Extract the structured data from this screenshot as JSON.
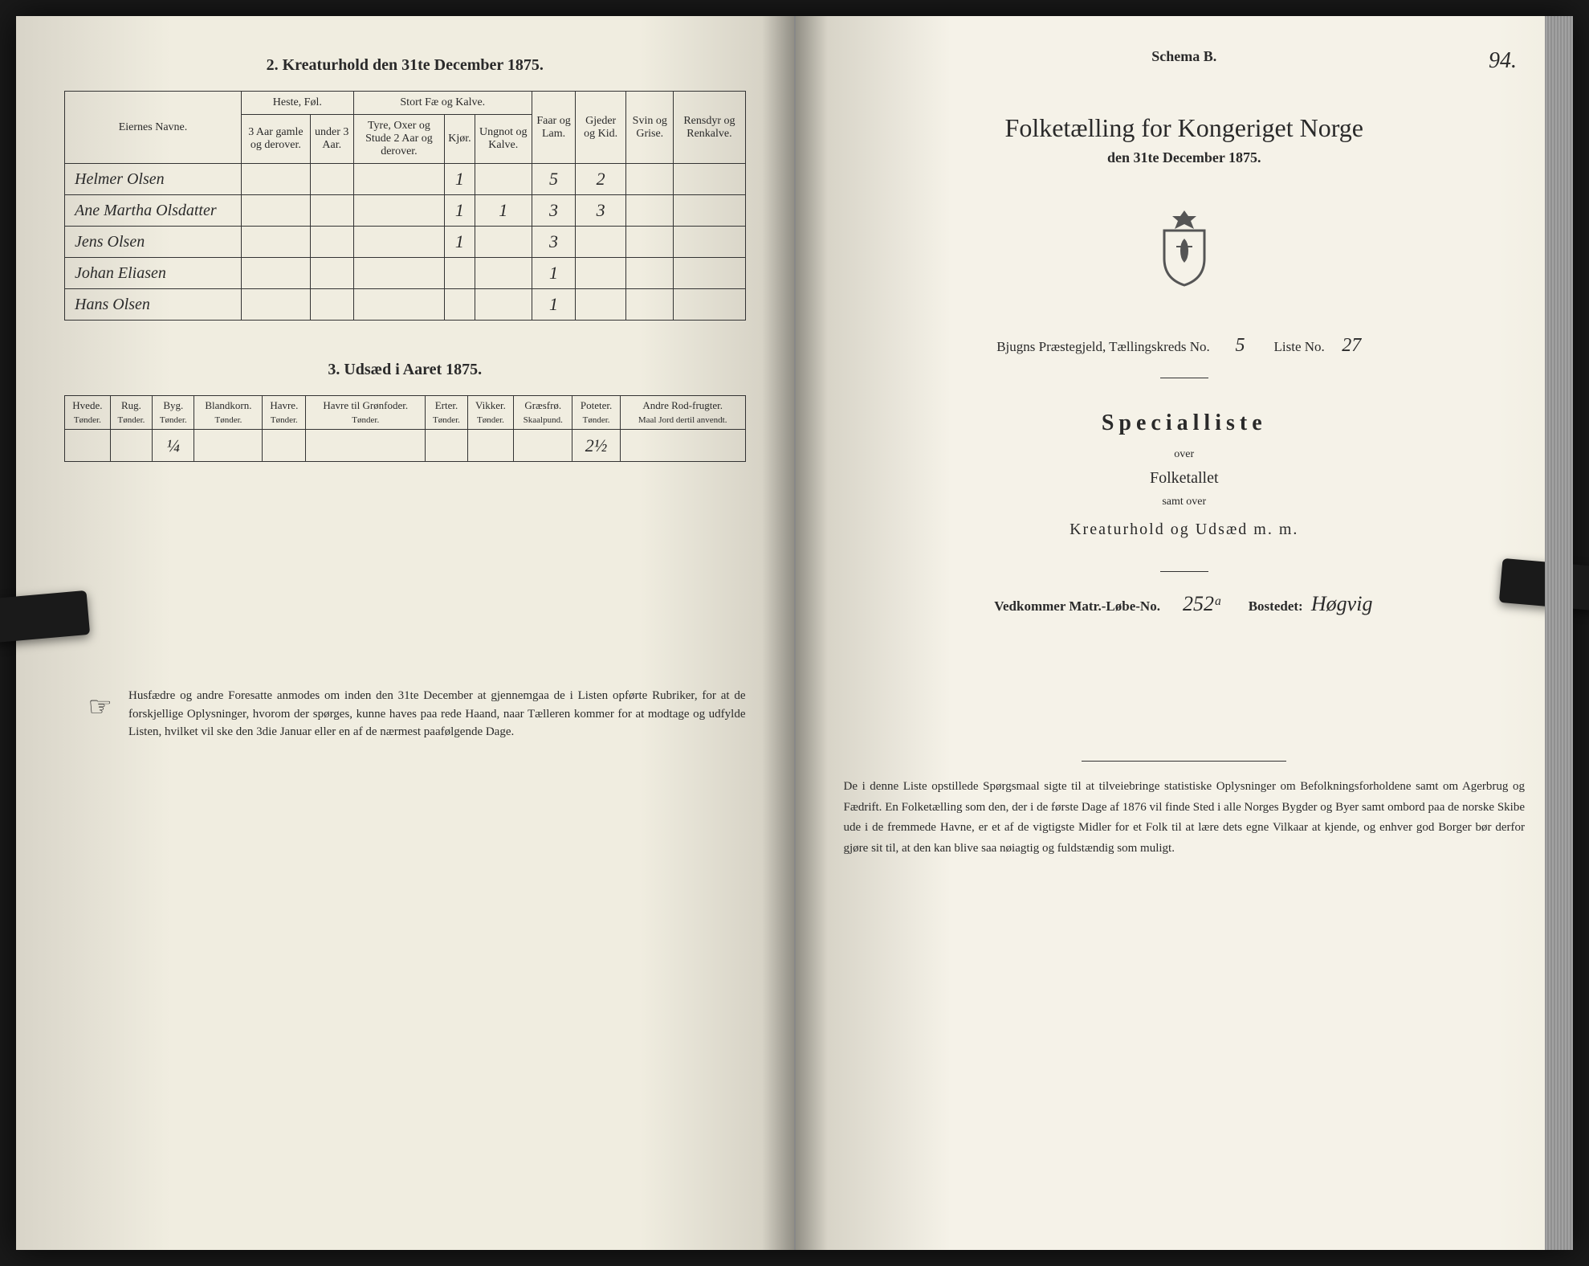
{
  "left": {
    "section2_title": "2.  Kreaturhold den 31te December 1875.",
    "table2": {
      "owners_header": "Eiernes Navne.",
      "horse_group": "Heste, Føl.",
      "horse_col1": "3 Aar gamle og derover.",
      "horse_col2": "under 3 Aar.",
      "cattle_group": "Stort Fæ og Kalve.",
      "cattle_col1": "Tyre, Oxer og Stude 2 Aar og derover.",
      "cattle_col2": "Kjør.",
      "cattle_col3": "Ungnot og Kalve.",
      "sheep": "Faar og Lam.",
      "goats": "Gjeder og Kid.",
      "pigs": "Svin og Grise.",
      "reindeer": "Rensdyr og Renkalve.",
      "rows": [
        {
          "name": "Helmer Olsen",
          "kjor": "1",
          "ung": "",
          "sheep": "5",
          "goats": "2"
        },
        {
          "name": "Ane Martha Olsdatter",
          "kjor": "1",
          "ung": "1",
          "sheep": "3",
          "goats": "3"
        },
        {
          "name": "Jens Olsen",
          "kjor": "1",
          "ung": "",
          "sheep": "3",
          "goats": ""
        },
        {
          "name": "Johan Eliasen",
          "kjor": "",
          "ung": "",
          "sheep": "1",
          "goats": ""
        },
        {
          "name": "Hans Olsen",
          "kjor": "",
          "ung": "",
          "sheep": "1",
          "goats": ""
        }
      ]
    },
    "section3_title": "3.  Udsæd i Aaret 1875.",
    "table3": {
      "cols": [
        {
          "h": "Hvede.",
          "s": "Tønder."
        },
        {
          "h": "Rug.",
          "s": "Tønder."
        },
        {
          "h": "Byg.",
          "s": "Tønder."
        },
        {
          "h": "Blandkorn.",
          "s": "Tønder."
        },
        {
          "h": "Havre.",
          "s": "Tønder."
        },
        {
          "h": "Havre til Grønfoder.",
          "s": "Tønder."
        },
        {
          "h": "Erter.",
          "s": "Tønder."
        },
        {
          "h": "Vikker.",
          "s": "Tønder."
        },
        {
          "h": "Græsfrø.",
          "s": "Skaalpund."
        },
        {
          "h": "Poteter.",
          "s": "Tønder."
        },
        {
          "h": "Andre Rod-frugter.",
          "s": "Maal Jord dertil anvendt."
        }
      ],
      "row": {
        "byg": "¼",
        "poteter": "2½"
      }
    },
    "footnote_text": "Husfædre og andre Foresatte anmodes om inden den 31te December at gjennemgaa de i Listen opførte Rubriker, for at de forskjellige Oplysninger, hvorom der spørges, kunne haves paa rede Haand, naar Tælleren kommer for at modtage og udfylde Listen, hvilket vil ske den 3die Januar eller en af de nærmest paafølgende Dage."
  },
  "right": {
    "pagenum": "94.",
    "schema": "Schema B.",
    "title": "Folketælling for Kongeriget Norge",
    "subtitle": "den 31te December 1875.",
    "info_prefix": "Bjugns Præstegjeld,  Tællingskreds No.",
    "kreds_no": "5",
    "liste_label": "Liste No.",
    "liste_no": "27",
    "special": "Specialliste",
    "over1": "over",
    "folketallet": "Folketallet",
    "samt": "samt over",
    "kreatur": "Kreaturhold  og  Udsæd  m.  m.",
    "matr_label": "Vedkommer Matr.-Løbe-No.",
    "matr_no": "252ᵃ",
    "bosted_label": "Bostedet:",
    "bosted": "Høgvig",
    "footer_text": "De i denne Liste opstillede Spørgsmaal sigte til at tilveiebringe statistiske Oplysninger om Befolkningsforholdene samt om Agerbrug og Fædrift.  En Folketælling som den, der i de første Dage af 1876 vil finde Sted i alle Norges Bygder og Byer samt ombord paa de norske Skibe ude i de fremmede Havne, er et af de vigtigste Midler for et Folk til at lære dets egne Vilkaar at kjende, og enhver god Borger bør derfor gjøre sit til, at den kan blive saa nøiagtig og fuldstændig som muligt."
  },
  "colors": {
    "ink": "#2a2a2a",
    "paper": "#f5f2e8",
    "border": "#333333"
  }
}
